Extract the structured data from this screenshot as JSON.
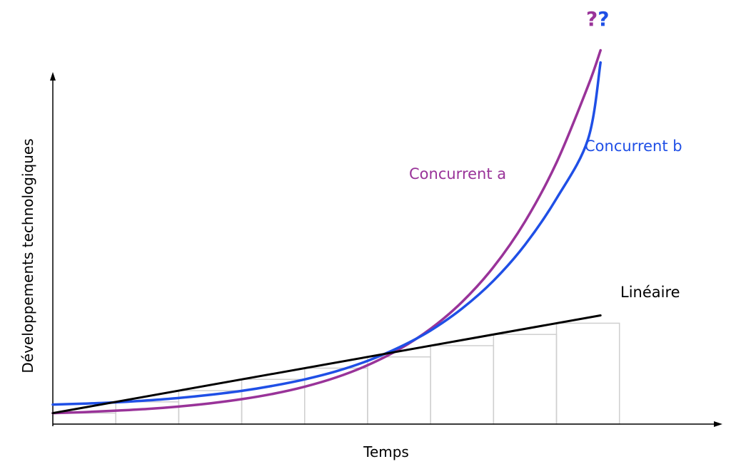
{
  "chart_data": {
    "type": "line",
    "title": "",
    "xlabel": "Temps",
    "ylabel": "Développements technologiques",
    "grid": false,
    "x": [
      0,
      0.5,
      1,
      1.5,
      2,
      2.5,
      3,
      3.5,
      4,
      4.5,
      5,
      5.5,
      6,
      6.5,
      7,
      7.5,
      8,
      8.5,
      8.7
    ],
    "series": [
      {
        "name": "Concurrent a",
        "color": "#993399",
        "values": [
          0.0,
          0.04,
          0.1,
          0.17,
          0.27,
          0.4,
          0.57,
          0.79,
          1.08,
          1.46,
          1.96,
          2.61,
          3.45,
          4.55,
          5.98,
          7.84,
          10.25,
          13.38,
          14.85
        ]
      },
      {
        "name": "Concurrent b",
        "color": "#1f4fe6",
        "values": [
          0.35,
          0.39,
          0.44,
          0.52,
          0.62,
          0.75,
          0.91,
          1.12,
          1.38,
          1.71,
          2.14,
          2.69,
          3.38,
          4.28,
          5.42,
          6.89,
          8.78,
          11.2,
          14.35
        ]
      },
      {
        "name": "Linéaire",
        "color": "#000000",
        "values": [
          0.0,
          0.23,
          0.46,
          0.69,
          0.92,
          1.15,
          1.38,
          1.61,
          1.84,
          2.07,
          2.3,
          2.53,
          2.76,
          2.99,
          3.22,
          3.45,
          3.68,
          3.91,
          4.0
        ]
      }
    ],
    "steps": [
      0.0,
      0.46,
      0.92,
      1.38,
      1.84,
      2.3,
      2.76,
      3.22,
      3.68
    ],
    "annotation": "??",
    "annotation_colors": [
      "#993399",
      "#1f4fe6"
    ],
    "xlim": [
      0,
      10.5
    ],
    "ylim": [
      -0.45,
      16.5
    ]
  }
}
